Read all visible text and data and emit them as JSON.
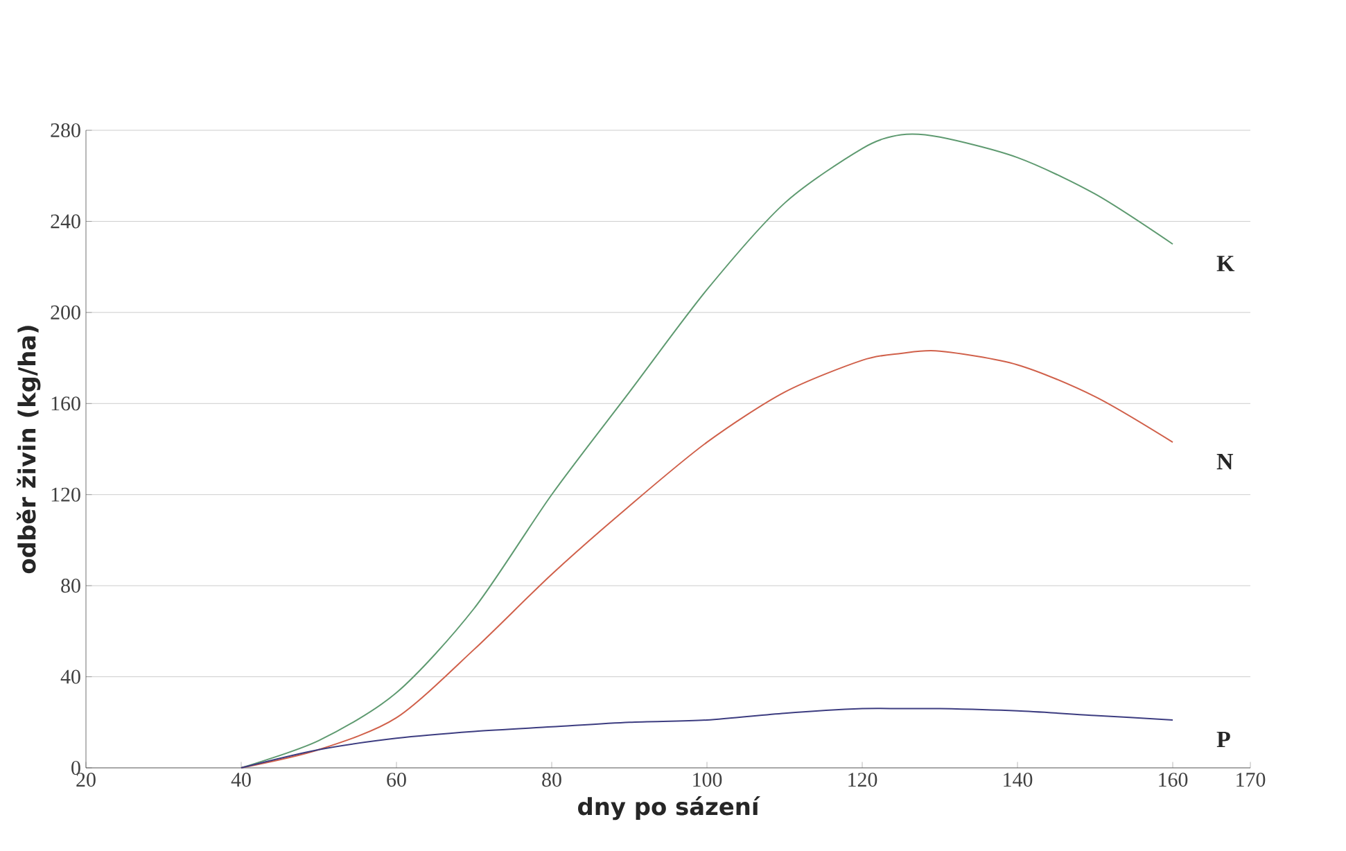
{
  "chart_data": {
    "type": "line",
    "xlabel": "dny po sázení",
    "ylabel": "odběr živin (kg/ha)",
    "x": [
      40,
      50,
      60,
      70,
      80,
      90,
      100,
      110,
      120,
      125,
      130,
      140,
      150,
      160
    ],
    "series": [
      {
        "name": "K",
        "color": "#5e9a70",
        "values": [
          0,
          12,
          33,
          70,
          120,
          165,
          210,
          248,
          272,
          278,
          277,
          268,
          252,
          230
        ]
      },
      {
        "name": "N",
        "color": "#d0604a",
        "values": [
          0,
          8,
          22,
          52,
          85,
          115,
          143,
          165,
          179,
          182,
          183,
          177,
          163,
          143
        ]
      },
      {
        "name": "P",
        "color": "#3c3c80",
        "values": [
          0,
          8,
          13,
          16,
          18,
          20,
          21,
          24,
          26,
          26,
          26,
          25,
          23,
          21
        ]
      }
    ],
    "xlim": [
      20,
      170
    ],
    "ylim": [
      0,
      280
    ],
    "xticks": [
      20,
      40,
      60,
      80,
      100,
      120,
      140,
      160,
      170
    ],
    "yticks": [
      0,
      40,
      80,
      120,
      160,
      200,
      240,
      280
    ],
    "grid": "y",
    "marker": "none",
    "line_style": "solid"
  }
}
